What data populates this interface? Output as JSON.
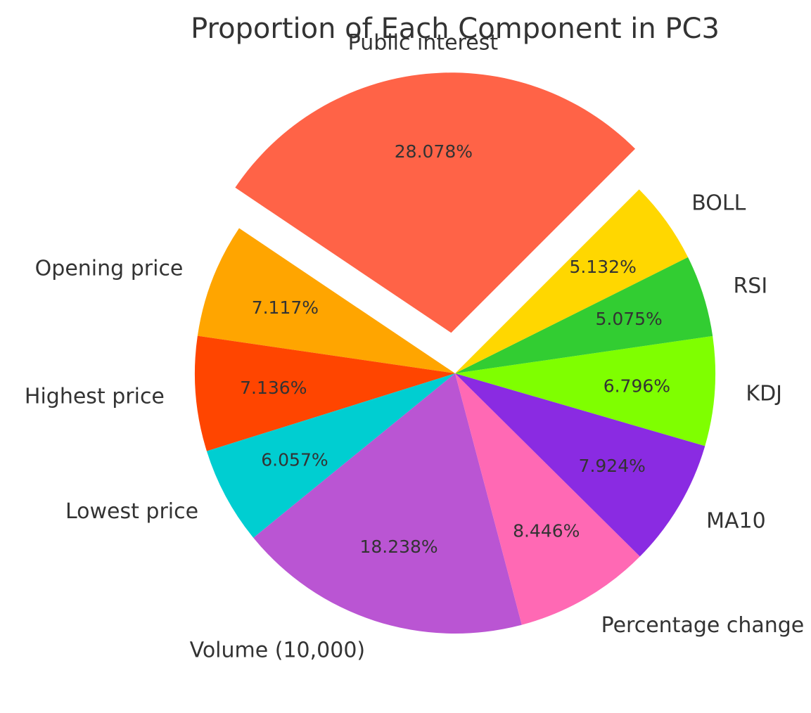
{
  "chart_data": {
    "type": "pie",
    "title": "Proportion of Each Component in PC3",
    "start_angle_deg": 45,
    "direction": "counterclockwise",
    "slices": [
      {
        "label": "Public interest",
        "value": 28.078,
        "pct_label": "28.078%",
        "color": "#FF6347",
        "exploded": true
      },
      {
        "label": "Opening price",
        "value": 7.117,
        "pct_label": "7.117%",
        "color": "#FFA500",
        "exploded": false
      },
      {
        "label": "Highest price",
        "value": 7.136,
        "pct_label": "7.136%",
        "color": "#FF4500",
        "exploded": false
      },
      {
        "label": "Lowest price",
        "value": 6.057,
        "pct_label": "6.057%",
        "color": "#00CED1",
        "exploded": false
      },
      {
        "label": "Volume (10,000)",
        "value": 18.238,
        "pct_label": "18.238%",
        "color": "#BA55D3",
        "exploded": false
      },
      {
        "label": "Percentage change",
        "value": 8.446,
        "pct_label": "8.446%",
        "color": "#FF69B4",
        "exploded": false
      },
      {
        "label": "MA10",
        "value": 7.924,
        "pct_label": "7.924%",
        "color": "#8A2BE2",
        "exploded": false
      },
      {
        "label": "KDJ",
        "value": 6.796,
        "pct_label": "6.796%",
        "color": "#7FFF00",
        "exploded": false
      },
      {
        "label": "RSI",
        "value": 5.075,
        "pct_label": "5.075%",
        "color": "#32CD32",
        "exploded": false
      },
      {
        "label": "BOLL",
        "value": 5.132,
        "pct_label": "5.132%",
        "color": "#FFD700",
        "exploded": false
      }
    ]
  }
}
